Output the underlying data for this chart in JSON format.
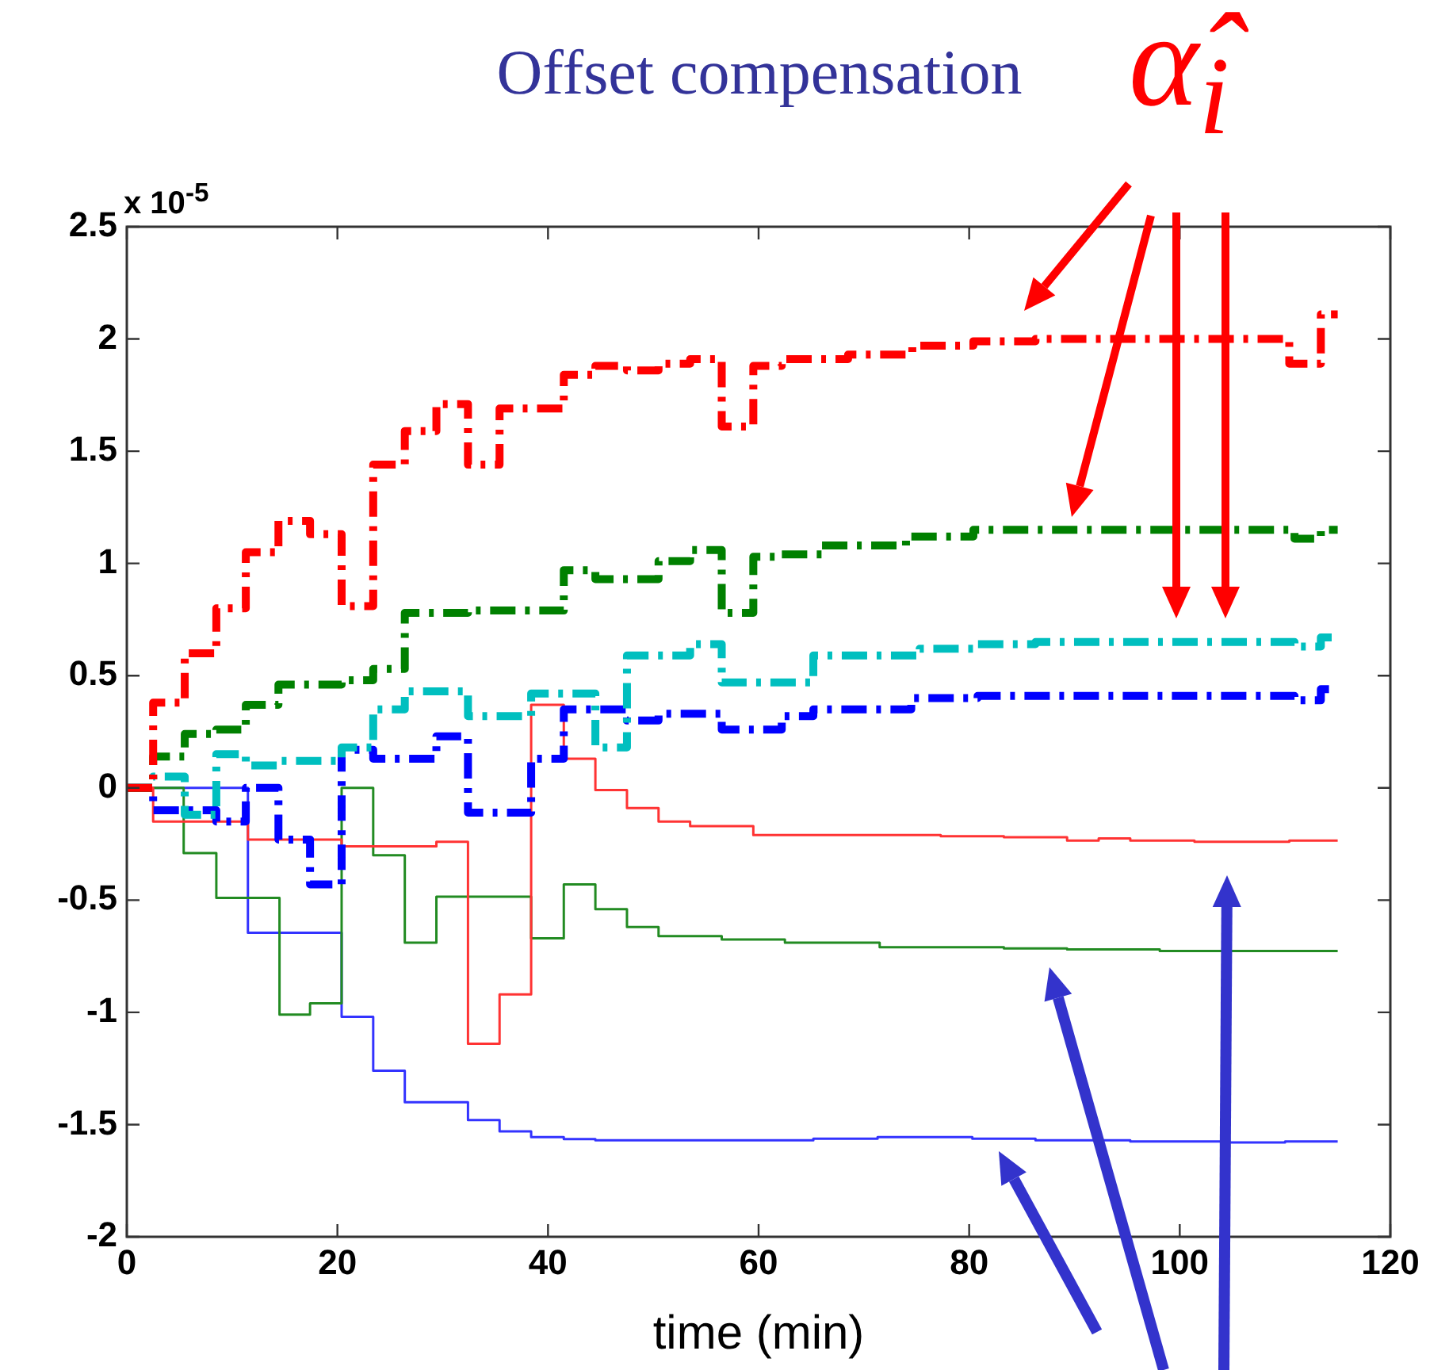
{
  "chart_data": {
    "type": "step",
    "title": "Offset compensation",
    "xlabel": "time (min)",
    "annotations": [
      "α̂$_{i}$",
      "x 10$^{-5}$"
    ],
    "xlim": [
      0,
      120
    ],
    "xticks": [
      0,
      20,
      40,
      60,
      80,
      100,
      120
    ],
    "ylim": [
      -2,
      2.5
    ],
    "yticks": [
      {
        "value": 2.5,
        "label": "2.5"
      },
      {
        "value": 2,
        "label": "2"
      },
      {
        "value": 1.5,
        "label": "1.5"
      },
      {
        "value": 1,
        "label": "1"
      },
      {
        "value": 0.5,
        "label": "0.5"
      },
      {
        "value": 0,
        "label": "0"
      },
      {
        "value": -0.5,
        "label": "-0.5"
      },
      {
        "value": -1,
        "label": "-1"
      },
      {
        "value": -1.5,
        "label": "-1.5"
      },
      {
        "value": -2,
        "label": "-2"
      }
    ],
    "grid": false,
    "legend": false,
    "marker": "none",
    "series": [
      {
        "color": "#ff0000",
        "line_style": "dashed",
        "x": [
          0,
          2.5,
          5.5,
          8.5,
          11.3,
          14.4,
          17.4,
          20.4,
          23.4,
          26.4,
          29.4,
          32.4,
          35.4,
          41.5,
          44.5,
          47.5,
          50.5,
          53.5,
          56.5,
          59.5,
          62.2,
          68.5,
          74.6,
          80.4,
          86.3,
          110.4,
          113.4,
          115
        ],
        "values": [
          0,
          0.38,
          0.6,
          0.8,
          1.05,
          1.19,
          1.13,
          0.81,
          1.44,
          1.59,
          1.71,
          1.44,
          1.69,
          1.84,
          1.88,
          1.86,
          1.89,
          1.91,
          1.61,
          1.88,
          1.91,
          1.93,
          1.97,
          1.99,
          2.0,
          1.89,
          2.11,
          2.11
        ]
      },
      {
        "color": "#008000",
        "line_style": "dashed",
        "x": [
          0,
          2.5,
          5.5,
          8.5,
          11.3,
          14.4,
          20.4,
          23.4,
          26.4,
          32.4,
          41.5,
          44.5,
          50.5,
          53.5,
          56.5,
          59.5,
          62.2,
          66,
          74,
          80.4,
          110.9,
          113.4,
          115
        ],
        "values": [
          0,
          0.14,
          0.24,
          0.26,
          0.37,
          0.46,
          0.48,
          0.53,
          0.78,
          0.79,
          0.97,
          0.93,
          1.01,
          1.06,
          0.78,
          1.03,
          1.04,
          1.08,
          1.12,
          1.15,
          1.11,
          1.15,
          1.15
        ]
      },
      {
        "color": "#00bfbf",
        "line_style": "dashed",
        "x": [
          0,
          2.5,
          5.5,
          8.5,
          11.3,
          14.4,
          20.4,
          23.4,
          26.4,
          32.4,
          38.4,
          44.5,
          47.5,
          53.5,
          56.5,
          65.2,
          75.3,
          80.8,
          86.3,
          110.9,
          113.4,
          115
        ],
        "values": [
          0,
          0.05,
          -0.12,
          0.15,
          0.1,
          0.12,
          0.18,
          0.35,
          0.43,
          0.32,
          0.42,
          0.18,
          0.59,
          0.64,
          0.47,
          0.59,
          0.62,
          0.64,
          0.65,
          0.63,
          0.67,
          0.67
        ]
      },
      {
        "color": "#0000ff",
        "line_style": "dashed",
        "x": [
          0,
          2.5,
          8.5,
          11.3,
          14.4,
          17.4,
          20.4,
          23.4,
          29.4,
          32.4,
          38.4,
          41.5,
          47.5,
          50.5,
          56.5,
          62.2,
          65.2,
          74.5,
          80.8,
          110.9,
          113.4,
          115
        ],
        "values": [
          0,
          -0.1,
          -0.15,
          0,
          -0.23,
          -0.43,
          0.17,
          0.13,
          0.23,
          -0.11,
          0.13,
          0.35,
          0.3,
          0.33,
          0.26,
          0.32,
          0.35,
          0.4,
          0.41,
          0.39,
          0.44,
          0.44
        ]
      },
      {
        "color": "#ff3333",
        "line_style": "solid",
        "x": [
          0,
          2.5,
          11.5,
          20.4,
          29.4,
          32.4,
          35.4,
          38.4,
          41.5,
          44.5,
          47.5,
          50.5,
          53.5,
          59.5,
          77.3,
          83.3,
          89.3,
          92.3,
          95.3,
          101.4,
          110.4,
          115
        ],
        "values": [
          0,
          -0.15,
          -0.23,
          -0.26,
          -0.24,
          -1.14,
          -0.92,
          0.37,
          0.13,
          -0.01,
          -0.09,
          -0.15,
          -0.17,
          -0.21,
          -0.215,
          -0.22,
          -0.235,
          -0.225,
          -0.235,
          -0.24,
          -0.235,
          -0.235
        ]
      },
      {
        "color": "#228b22",
        "line_style": "solid",
        "x": [
          0,
          5.4,
          8.5,
          14.5,
          17.4,
          20.4,
          23.4,
          26.4,
          29.4,
          38.4,
          41.5,
          44.5,
          47.5,
          50.5,
          56.5,
          62.5,
          71.5,
          83.3,
          89.3,
          98.1,
          115
        ],
        "values": [
          0,
          -0.29,
          -0.49,
          -1.01,
          -0.96,
          0,
          -0.3,
          -0.69,
          -0.485,
          -0.67,
          -0.43,
          -0.54,
          -0.62,
          -0.66,
          -0.675,
          -0.69,
          -0.71,
          -0.715,
          -0.72,
          -0.727,
          -0.727
        ]
      },
      {
        "color": "#3333ff",
        "line_style": "solid",
        "x": [
          0,
          11.5,
          20.4,
          23.4,
          26.4,
          32.4,
          35.4,
          38.4,
          41.5,
          44.5,
          65.2,
          71.3,
          80.3,
          86.3,
          95.3,
          104.4,
          110,
          115
        ],
        "values": [
          0,
          -0.645,
          -1.02,
          -1.26,
          -1.4,
          -1.48,
          -1.53,
          -1.556,
          -1.565,
          -1.57,
          -1.563,
          -1.556,
          -1.563,
          -1.57,
          -1.575,
          -1.58,
          -1.575,
          -1.575
        ]
      }
    ]
  }
}
